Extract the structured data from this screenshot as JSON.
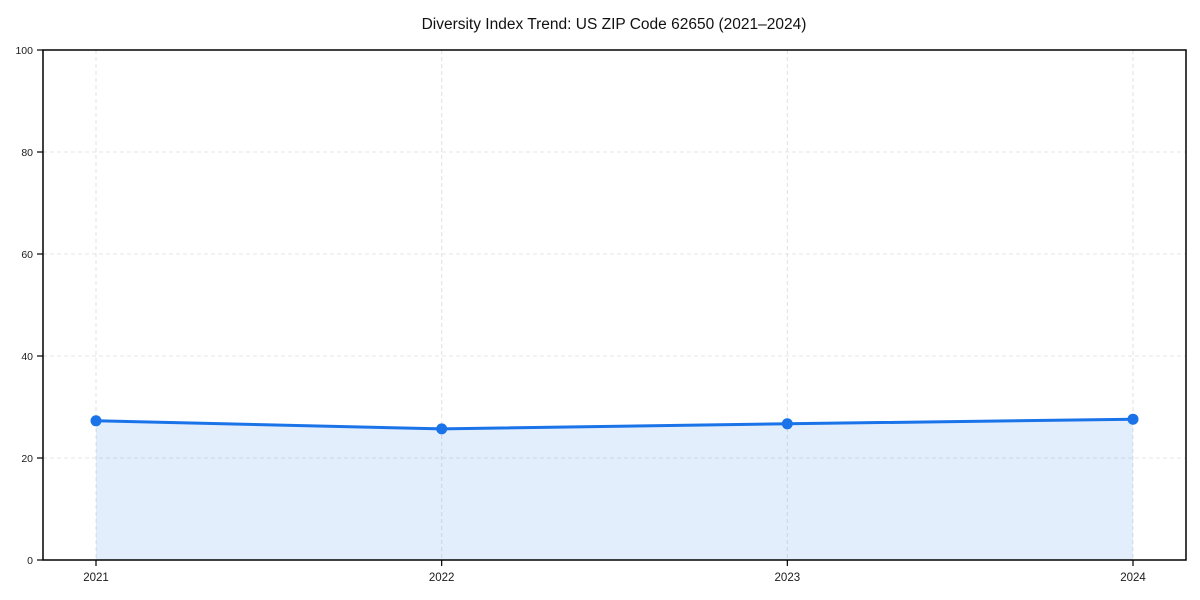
{
  "title": "Diversity Index Trend: US ZIP Code 62650 (2021–2024)",
  "colors": {
    "line": "#1a73e8",
    "marker": "#1a73e8",
    "area_fill": "rgba(26,115,232,0.12)",
    "grid": "#e4e4e4",
    "axis": "#000000",
    "text": "#1a1a1a",
    "background": "#ffffff"
  },
  "chart_data": {
    "type": "area",
    "title": "Diversity Index Trend: US ZIP Code 62650 (2021–2024)",
    "categories": [
      "2021",
      "2022",
      "2023",
      "2024"
    ],
    "series": [
      {
        "name": "Diversity Index",
        "values": [
          27.3,
          25.7,
          26.7,
          27.6
        ]
      }
    ],
    "xlabel": "",
    "ylabel": "",
    "ylim": [
      0,
      100
    ],
    "yticks": [
      0,
      20,
      40,
      60,
      80,
      100
    ],
    "grid": true,
    "grid_style": "dashed",
    "legend": false,
    "marker": "circle",
    "line_width": 3,
    "marker_radius": 5.5
  }
}
